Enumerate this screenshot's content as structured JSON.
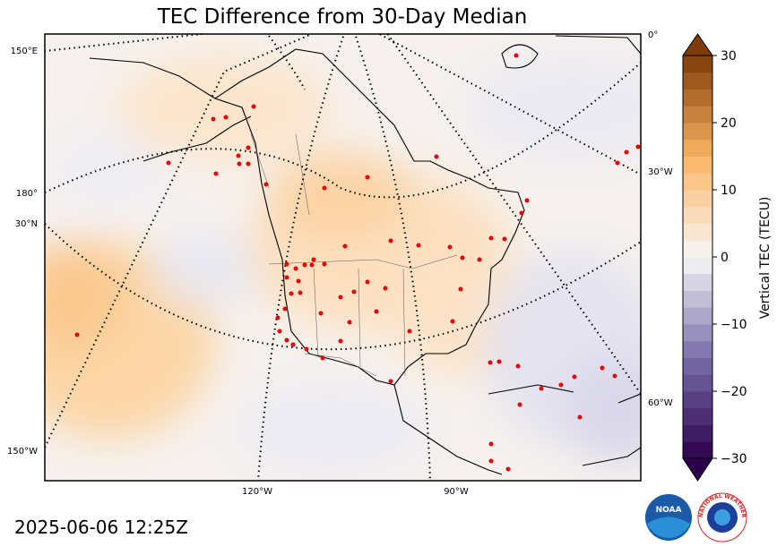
{
  "title": "TEC Difference from 30-Day Median",
  "timestamp": "2025-06-06 12:25Z",
  "colorbar": {
    "label": "Vertical TEC (TECU)",
    "lim": [
      -30,
      30
    ],
    "ticks": [
      {
        "value": -30,
        "label": "−30"
      },
      {
        "value": -20,
        "label": "−20"
      },
      {
        "value": -10,
        "label": "−10"
      },
      0,
      10,
      20,
      30
    ]
  },
  "graticule_labels": [
    "150°E",
    "180°",
    "30°N",
    "150°W",
    "120°W",
    "90°W",
    "0°",
    "30°W",
    "60°W"
  ],
  "logos": {
    "noaa": "NOAA",
    "nws": "NATIONAL WEATHER SERVICE"
  }
}
